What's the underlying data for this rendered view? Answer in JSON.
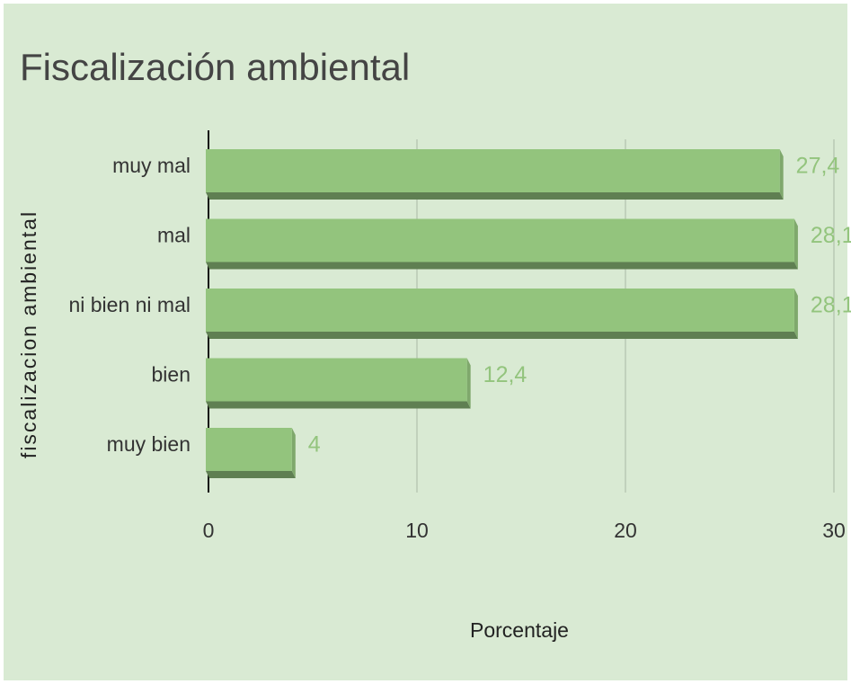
{
  "chart_data": {
    "type": "bar",
    "orientation": "horizontal",
    "title": "Fiscalización ambiental",
    "x_label": "Porcentaje",
    "y_label": "fiscalizacion ambiental",
    "categories": [
      "muy mal",
      "mal",
      "ni bien ni mal",
      "bien",
      "muy bien"
    ],
    "values": [
      27.4,
      28.1,
      28.1,
      12.4,
      4
    ],
    "value_labels": [
      "27,4",
      "28,1",
      "28,1",
      "12,4",
      "4"
    ],
    "color": "#93c47d",
    "xlim": [
      0,
      30
    ],
    "xticks": [
      0,
      10,
      20,
      30
    ],
    "grid": true
  }
}
